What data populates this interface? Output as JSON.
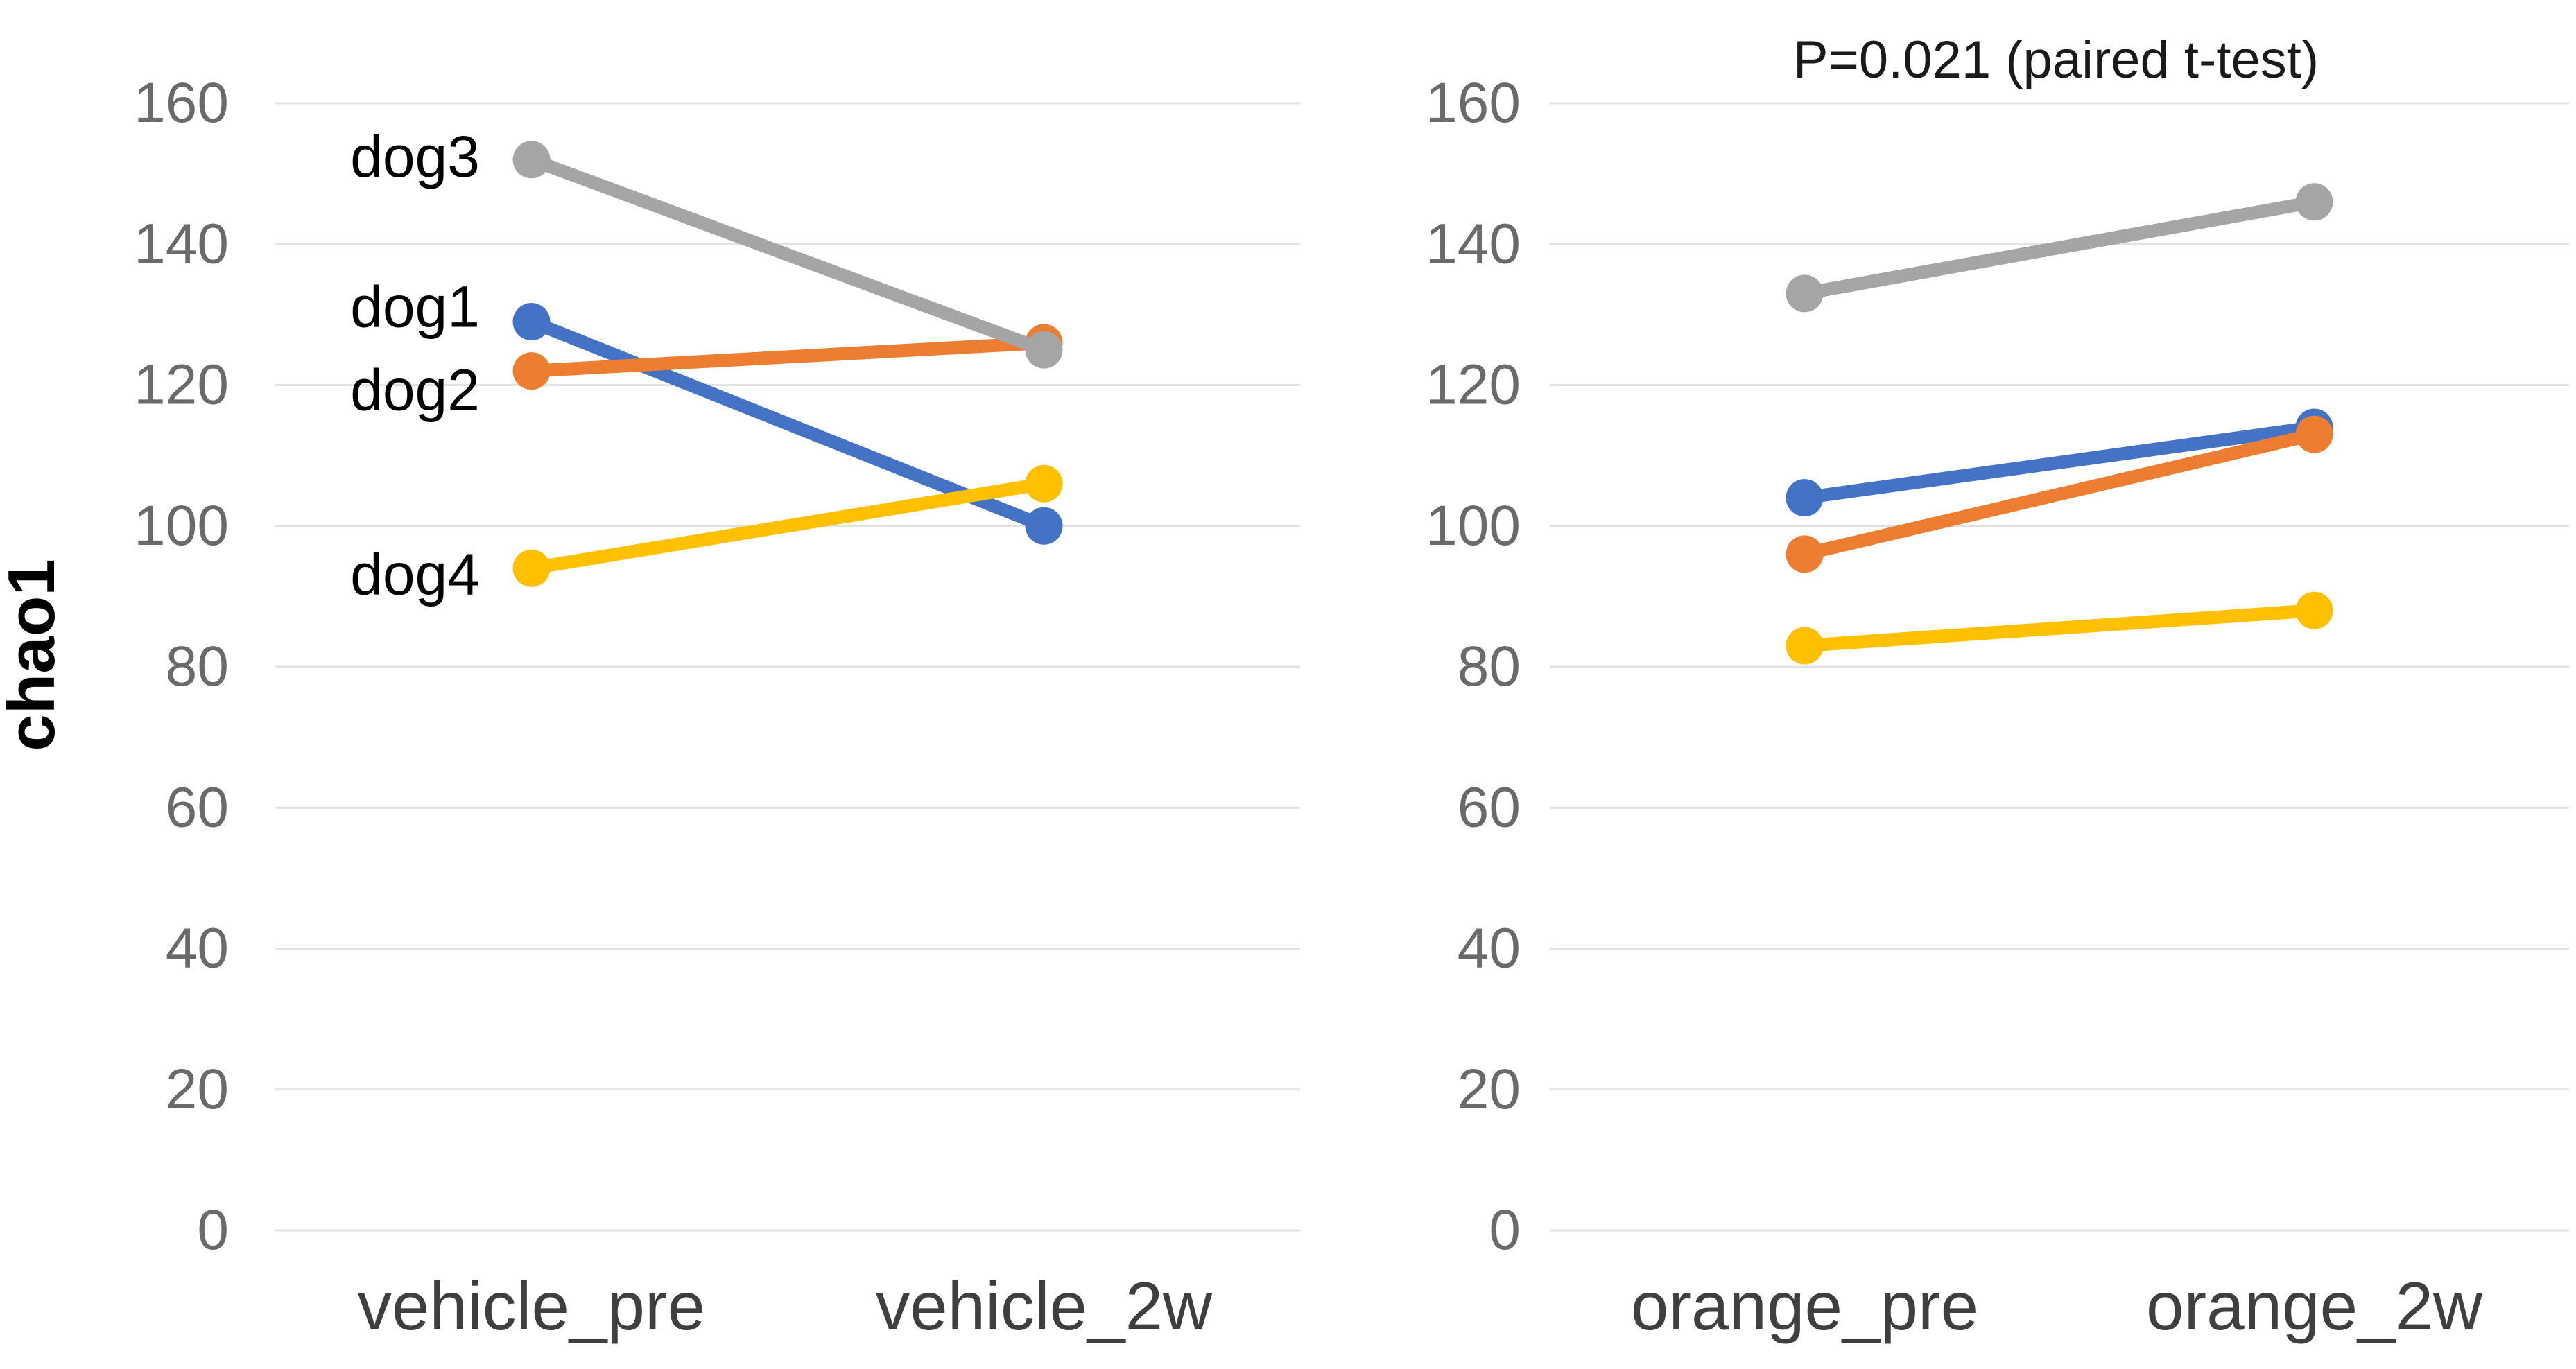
{
  "figure": {
    "background": "#ffffff",
    "gridline_color": "#e2e2e2",
    "tick_label_color": "#6a6a6a",
    "x_label_color": "#3f3f3f"
  },
  "chart_data": [
    {
      "type": "line",
      "title": "",
      "ylabel": "chao1",
      "categories": [
        "vehicle_pre",
        "vehicle_2w"
      ],
      "ylim": [
        0,
        160
      ],
      "yticks": [
        160,
        140,
        120,
        100,
        80,
        60,
        40,
        20,
        0
      ],
      "grid": true,
      "legend_position": "inline-labels-left-of-first-point",
      "series": [
        {
          "name": "dog1",
          "color": "#4472C4",
          "values": [
            129,
            100
          ]
        },
        {
          "name": "dog2",
          "color": "#ED7D31",
          "values": [
            122,
            126
          ]
        },
        {
          "name": "dog3",
          "color": "#A5A5A5",
          "values": [
            152,
            125
          ]
        },
        {
          "name": "dog4",
          "color": "#FFC000",
          "values": [
            94,
            106
          ]
        }
      ]
    },
    {
      "type": "line",
      "title": "P=0.021 (paired t-test)",
      "ylabel": "chao1",
      "categories": [
        "orange_pre",
        "orange_2w"
      ],
      "ylim": [
        0,
        160
      ],
      "yticks": [
        160,
        140,
        120,
        100,
        80,
        60,
        40,
        20,
        0
      ],
      "grid": true,
      "legend_position": "none",
      "series": [
        {
          "name": "dog1",
          "color": "#4472C4",
          "values": [
            104,
            114
          ]
        },
        {
          "name": "dog2",
          "color": "#ED7D31",
          "values": [
            96,
            113
          ]
        },
        {
          "name": "dog3",
          "color": "#A5A5A5",
          "values": [
            133,
            146
          ]
        },
        {
          "name": "dog4",
          "color": "#FFC000",
          "values": [
            83,
            88
          ]
        }
      ]
    }
  ]
}
